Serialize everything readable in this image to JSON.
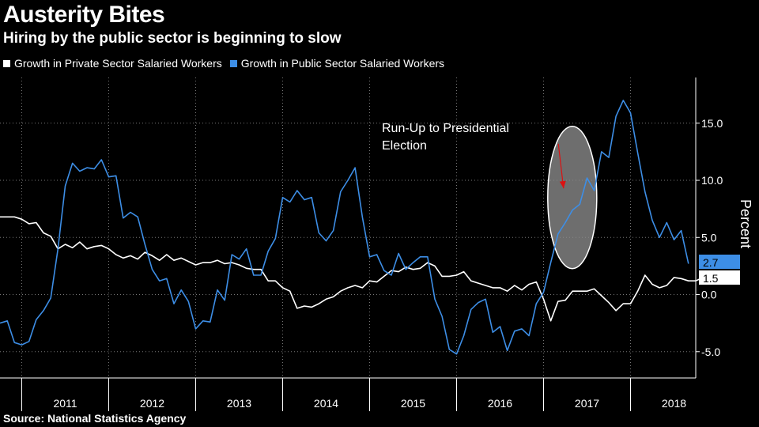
{
  "title": "Austerity Bites",
  "subtitle": "Hiring by the public sector is beginning to slow",
  "source": "Source: National Statistics Agency",
  "chart_data": {
    "type": "line",
    "ylabel": "Percent",
    "ylim": [
      -7.3,
      19
    ],
    "yticks": [
      -5.0,
      0.0,
      5.0,
      10.0,
      15.0
    ],
    "ytick_labels": [
      "-5.0",
      "0.0",
      "5.0",
      "10.0",
      "15.0"
    ],
    "xlim": [
      2010.75,
      2018.75
    ],
    "year_labels": [
      "2011",
      "2012",
      "2013",
      "2014",
      "2015",
      "2016",
      "2017",
      "2018"
    ],
    "grid": true,
    "legend": "top-left",
    "annotation": {
      "text_lines": [
        "Run-Up to Presidential",
        "Election"
      ],
      "ellipse_center": [
        2017.33,
        8.5
      ],
      "arrow_from": [
        2017.17,
        13.2
      ],
      "arrow_to": [
        2017.23,
        9.3
      ]
    },
    "series": [
      {
        "name": "Growth in Private Sector Salaried Workers",
        "color": "#ffffff",
        "end_label": "1.5",
        "x_start": 2010.75,
        "x_step": 0.08333,
        "values": [
          6.8,
          6.8,
          6.8,
          6.6,
          6.2,
          6.3,
          5.4,
          5.1,
          4.0,
          4.4,
          4.1,
          4.6,
          4.0,
          4.2,
          4.3,
          4.0,
          3.5,
          3.2,
          3.4,
          3.1,
          3.7,
          3.4,
          3.0,
          3.5,
          3.0,
          3.2,
          2.9,
          2.6,
          2.8,
          2.8,
          3.0,
          2.7,
          2.8,
          2.6,
          2.3,
          2.2,
          2.2,
          1.2,
          1.2,
          0.6,
          0.3,
          -1.2,
          -1.0,
          -1.1,
          -0.8,
          -0.4,
          -0.2,
          0.3,
          0.6,
          0.8,
          0.6,
          1.2,
          1.1,
          1.6,
          2.1,
          2.0,
          2.4,
          2.2,
          2.3,
          2.8,
          2.5,
          1.6,
          1.6,
          1.7,
          2.0,
          1.2,
          1.0,
          0.8,
          0.6,
          0.6,
          0.3,
          0.8,
          0.4,
          0.9,
          1.1,
          -0.4,
          -2.3,
          -0.6,
          -0.5,
          0.3,
          0.3,
          0.3,
          0.5,
          -0.1,
          -0.7,
          -1.4,
          -0.8,
          -0.8,
          0.3,
          1.7,
          0.9,
          0.6,
          0.8,
          1.5,
          1.4,
          1.2,
          1.2,
          1.5
        ]
      },
      {
        "name": "Growth in Public Sector Salaried Workers",
        "color": "#3d8ee6",
        "end_label": "2.7",
        "x_start": 2010.75,
        "x_step": 0.08333,
        "values": [
          -2.5,
          -2.3,
          -4.2,
          -4.4,
          -4.1,
          -2.2,
          -1.4,
          -0.3,
          4.0,
          9.5,
          11.5,
          10.8,
          11.1,
          11.0,
          11.8,
          10.3,
          10.4,
          6.7,
          7.2,
          6.8,
          4.4,
          2.2,
          1.2,
          1.4,
          -0.8,
          0.4,
          -0.6,
          -3.0,
          -2.3,
          -2.4,
          0.4,
          -0.5,
          3.5,
          3.1,
          4.0,
          1.7,
          1.7,
          3.8,
          4.9,
          8.5,
          8.1,
          9.1,
          8.3,
          8.5,
          5.4,
          4.7,
          5.6,
          9.0,
          10.0,
          11.1,
          6.8,
          3.3,
          3.5,
          2.1,
          1.7,
          3.6,
          2.2,
          2.8,
          3.3,
          3.3,
          -0.4,
          -1.9,
          -4.8,
          -5.2,
          -3.6,
          -1.3,
          -0.7,
          -0.4,
          -3.3,
          -2.8,
          -4.9,
          -3.2,
          -3.0,
          -3.6,
          -0.8,
          0.2,
          2.8,
          5.3,
          6.3,
          7.4,
          7.9,
          10.2,
          9.1,
          12.5,
          12.0,
          15.6,
          17.0,
          15.9,
          12.4,
          9.0,
          6.5,
          5.0,
          6.3,
          4.8,
          5.6,
          2.7
        ]
      }
    ]
  }
}
